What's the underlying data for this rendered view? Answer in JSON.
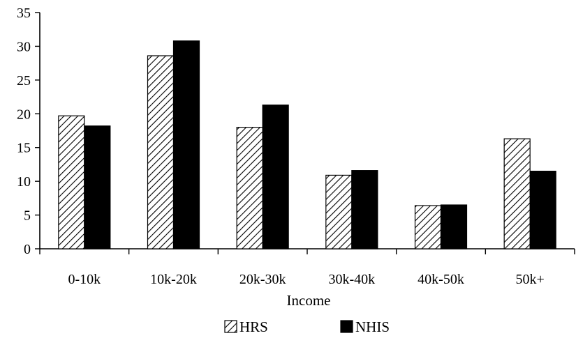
{
  "chart_data": {
    "type": "bar",
    "categories": [
      "0-10k",
      "10k-20k",
      "20k-30k",
      "30k-40k",
      "40k-50k",
      "50k+"
    ],
    "series": [
      {
        "name": "HRS",
        "values": [
          19.7,
          28.6,
          18.0,
          10.9,
          6.4,
          16.3
        ],
        "pattern": "diagonal-hatch"
      },
      {
        "name": "NHIS",
        "values": [
          18.2,
          30.8,
          21.3,
          11.6,
          6.5,
          11.5
        ],
        "pattern": "solid"
      }
    ],
    "title": "",
    "xlabel": "Income",
    "ylabel": "",
    "ylim": [
      0,
      35
    ],
    "yticks": [
      0,
      5,
      10,
      15,
      20,
      25,
      30,
      35
    ],
    "grid": false,
    "legend": "bottom-center",
    "colors": {
      "hrs_fill": "#ffffff",
      "hrs_hatch": "#000000",
      "nhis_fill": "#000000",
      "axis": "#000000"
    }
  }
}
